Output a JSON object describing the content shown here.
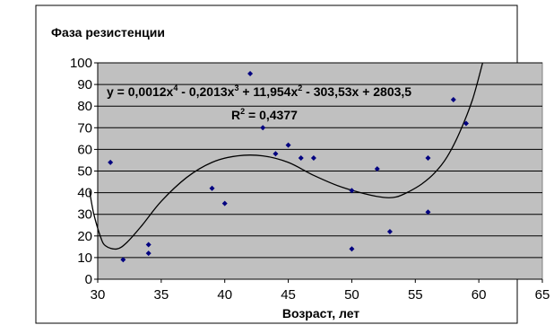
{
  "chart_data": {
    "type": "scatter",
    "title": "Фаза  резистенции",
    "xlabel": "Возраст, лет",
    "ylabel": "",
    "xlim": [
      30,
      65
    ],
    "ylim": [
      0,
      100
    ],
    "xticks": [
      30,
      35,
      40,
      45,
      50,
      55,
      60,
      65
    ],
    "yticks": [
      0,
      10,
      20,
      30,
      40,
      50,
      60,
      70,
      80,
      90,
      100
    ],
    "grid": true,
    "background_color": "#c0c0c0",
    "point_color": "#000080",
    "trendline_color": "#000000",
    "series": [
      {
        "points": [
          [
            31,
            54
          ],
          [
            32,
            9
          ],
          [
            34,
            16
          ],
          [
            34,
            12
          ],
          [
            39,
            42
          ],
          [
            40,
            35
          ],
          [
            42,
            95
          ],
          [
            43,
            70
          ],
          [
            44,
            58
          ],
          [
            45,
            62
          ],
          [
            46,
            56
          ],
          [
            47,
            56
          ],
          [
            50,
            41
          ],
          [
            50,
            14
          ],
          [
            52,
            51
          ],
          [
            53,
            22
          ],
          [
            56,
            56
          ],
          [
            56,
            31
          ],
          [
            58,
            83
          ],
          [
            59,
            72
          ]
        ]
      }
    ],
    "trendline": {
      "type": "polynomial",
      "order": 4,
      "equation_parts": {
        "lead": "y = 0,0012x",
        "e4": "4",
        "mid1": " - 0,2013x",
        "e3": "3",
        "mid2": " + 11,954x",
        "e2": "2",
        "tail": " - 303,53x + 2803,5"
      },
      "r2_label": "R",
      "r2_exp": "2",
      "r2_value": " = 0,4377",
      "curve": [
        [
          29.35,
          41
        ],
        [
          29.7,
          30
        ],
        [
          30.2,
          20
        ],
        [
          30.6,
          15.5
        ],
        [
          31.5,
          14
        ],
        [
          32.3,
          17
        ],
        [
          33.5,
          25
        ],
        [
          35,
          36
        ],
        [
          37,
          47
        ],
        [
          39,
          54
        ],
        [
          41,
          57
        ],
        [
          43,
          57
        ],
        [
          45,
          54
        ],
        [
          47,
          48
        ],
        [
          49,
          43
        ],
        [
          51,
          39.5
        ],
        [
          52.5,
          37.8
        ],
        [
          53.5,
          38
        ],
        [
          54.5,
          40.5
        ],
        [
          55.5,
          44
        ],
        [
          56.5,
          49
        ],
        [
          57.5,
          56.5
        ],
        [
          58.5,
          68
        ],
        [
          59.5,
          83
        ],
        [
          60.3,
          100
        ]
      ]
    }
  }
}
